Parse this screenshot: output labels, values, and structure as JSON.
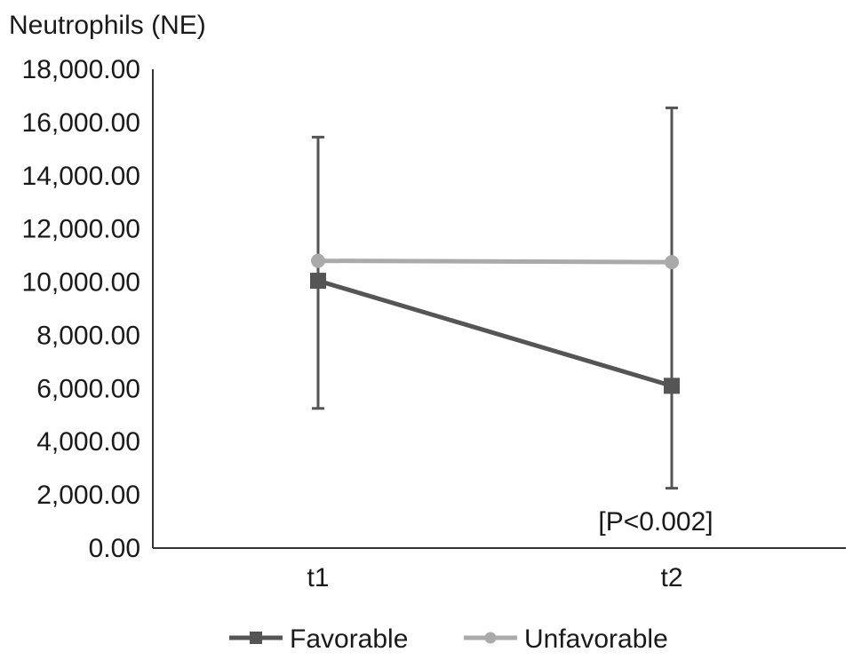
{
  "chart_data": {
    "type": "line",
    "title": "Neutrophils (NE)",
    "xlabel": "",
    "ylabel": "",
    "categories": [
      "t1",
      "t2"
    ],
    "ylim": [
      0,
      18000
    ],
    "yticks": [
      0,
      2000,
      4000,
      6000,
      8000,
      10000,
      12000,
      14000,
      16000,
      18000
    ],
    "ytick_labels": [
      "0.00",
      "2,000.00",
      "4,000.00",
      "6,000.00",
      "8,000.00",
      "10,000.00",
      "12,000.00",
      "14,000.00",
      "16,000.00",
      "18,000.00"
    ],
    "series": [
      {
        "name": "Favorable",
        "marker": "square",
        "color": "#555555",
        "values": [
          10050,
          6100
        ],
        "error_low": [
          5250,
          2250
        ],
        "error_high": [
          15450,
          16550
        ]
      },
      {
        "name": "Unfavorable",
        "marker": "circle",
        "color": "#aaaaaa",
        "values": [
          10800,
          10750
        ]
      }
    ],
    "annotations": [
      {
        "text": "[P<0.002]",
        "category": "t2"
      }
    ],
    "legend_position": "bottom",
    "grid": false
  }
}
